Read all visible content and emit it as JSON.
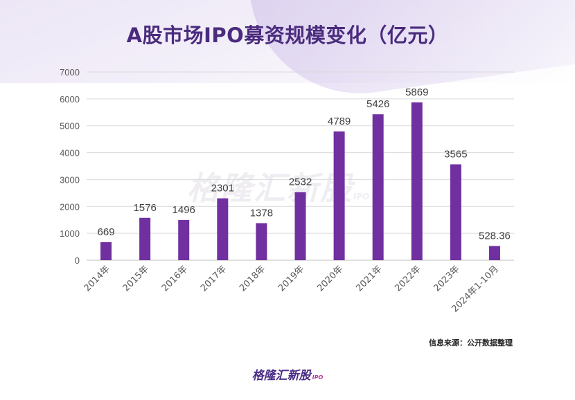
{
  "title": "A股市场IPO募资规模变化（亿元）",
  "source_note": "信息来源：公开数据整理",
  "logo_text": "格隆汇新股",
  "logo_suffix": "IPO",
  "watermark_text": "格隆汇新股",
  "watermark_suffix": "IPO",
  "colors": {
    "bar": "#7030a0",
    "title": "#4a2b7e",
    "grid": "#d9d9d9",
    "axis_text": "#595959"
  },
  "chart_data": {
    "type": "bar",
    "title": "A股市场IPO募资规模变化（亿元）",
    "xlabel": "",
    "ylabel": "",
    "categories": [
      "2014年",
      "2015年",
      "2016年",
      "2017年",
      "2018年",
      "2019年",
      "2020年",
      "2021年",
      "2022年",
      "2023年",
      "2024年1-10月"
    ],
    "values": [
      669,
      1576,
      1496,
      2301,
      1378,
      2532,
      4789,
      5426,
      5869,
      3565,
      528.36
    ],
    "value_labels": [
      "669",
      "1576",
      "1496",
      "2301",
      "1378",
      "2532",
      "4789",
      "5426",
      "5869",
      "3565",
      "528.36"
    ],
    "ylim": [
      0,
      7000
    ],
    "yticks": [
      "0",
      "1000",
      "2000",
      "3000",
      "4000",
      "5000",
      "6000",
      "7000"
    ],
    "grid": true,
    "legend": "none"
  }
}
